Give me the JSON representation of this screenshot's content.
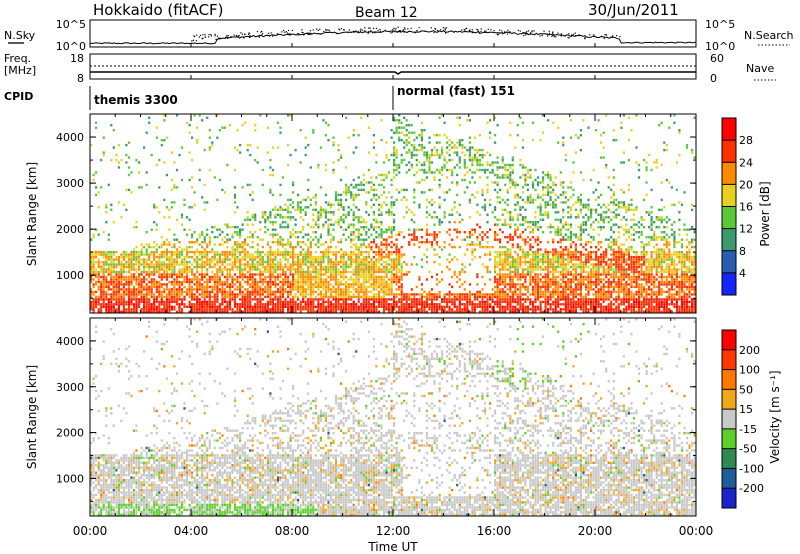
{
  "header": {
    "station": "Hokkaido (fitACF)",
    "beam": "Beam 12",
    "date": "30/Jun/2011"
  },
  "panels": {
    "nsky": {
      "left_label": "N.Sky",
      "left_ticks": [
        "10^5",
        "10^0"
      ],
      "right_ticks": [
        "10^5",
        "10^0"
      ],
      "right_label": "N.Search"
    },
    "freq": {
      "left_label_1": "Freq.",
      "left_label_2": "[MHz]",
      "left_ticks": [
        "18",
        "8"
      ],
      "right_ticks": [
        "60",
        "0"
      ],
      "right_label": "Nave"
    },
    "cpid": {
      "label": "CPID",
      "modes": [
        {
          "text": "themis 3300",
          "start_hour": 0
        },
        {
          "text": "normal (fast) 151",
          "start_hour": 12
        }
      ]
    }
  },
  "chart_data": [
    {
      "type": "heatmap",
      "name": "power",
      "ylabel": "Slant Range [km]",
      "xlabel": "",
      "x_ticks": [
        "00:00",
        "04:00",
        "08:00",
        "12:00",
        "16:00",
        "20:00",
        "00:00"
      ],
      "y_ticks": [
        "1000",
        "2000",
        "3000",
        "4000"
      ],
      "xlim_hours": [
        0,
        24
      ],
      "ylim_km": [
        180,
        4500
      ],
      "colorbar": {
        "title": "Power [dB]",
        "labels": [
          "4",
          "8",
          "12",
          "16",
          "20",
          "24",
          "28"
        ],
        "colors": [
          "#1424ff",
          "#2a5cb4",
          "#3a9a6e",
          "#5bc83a",
          "#e8d020",
          "#ff8a00",
          "#ff3000",
          "#ff0000"
        ]
      }
    },
    {
      "type": "heatmap",
      "name": "velocity",
      "ylabel": "Slant Range [km]",
      "xlabel": "Time UT",
      "x_ticks": [
        "00:00",
        "04:00",
        "08:00",
        "12:00",
        "16:00",
        "20:00",
        "00:00"
      ],
      "y_ticks": [
        "1000",
        "2000",
        "3000",
        "4000"
      ],
      "xlim_hours": [
        0,
        24
      ],
      "ylim_km": [
        180,
        4500
      ],
      "colorbar": {
        "title": "Velocity [m s⁻¹]",
        "labels": [
          "200",
          "100",
          "50",
          "15",
          "-15",
          "-50",
          "-100",
          "-200"
        ],
        "colors": [
          "#1a24c8",
          "#1f5c9a",
          "#2e8a50",
          "#5ccf28",
          "#c8c8c8",
          "#f0a818",
          "#ff7800",
          "#ff3800",
          "#ff0000"
        ]
      }
    }
  ]
}
